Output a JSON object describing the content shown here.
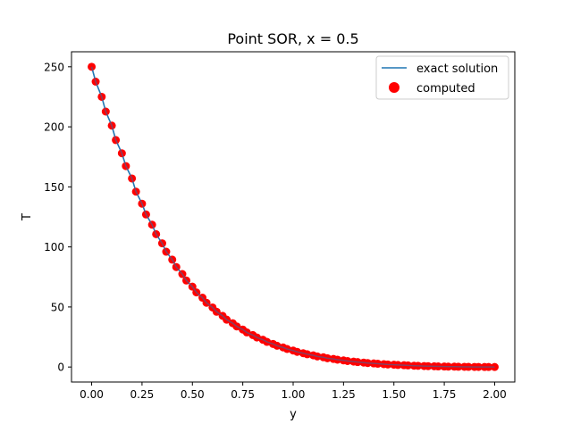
{
  "chart_data": {
    "type": "scatter",
    "title": "Point SOR, x = 0.5",
    "xlabel": "y",
    "ylabel": "T",
    "xlim": [
      -0.1,
      2.1
    ],
    "ylim": [
      -12.5,
      262.5
    ],
    "xticks": [
      0.0,
      0.25,
      0.5,
      0.75,
      1.0,
      1.25,
      1.5,
      1.75,
      2.0
    ],
    "xtick_labels": [
      "0.00",
      "0.25",
      "0.50",
      "0.75",
      "1.00",
      "1.25",
      "1.50",
      "1.75",
      "2.00"
    ],
    "yticks": [
      0,
      50,
      100,
      150,
      200,
      250
    ],
    "ytick_labels": [
      "0",
      "50",
      "100",
      "150",
      "200",
      "250"
    ],
    "grid": false,
    "legend_position": "upper right",
    "series": [
      {
        "name": "exact solution",
        "kind": "line",
        "color": "#1f77b4",
        "x": [
          0.0,
          0.02,
          0.05,
          0.07,
          0.1,
          0.12,
          0.15,
          0.17,
          0.2,
          0.22,
          0.25,
          0.27,
          0.3,
          0.32,
          0.35,
          0.37,
          0.4,
          0.42,
          0.45,
          0.47,
          0.5,
          0.52,
          0.55,
          0.57,
          0.6,
          0.62,
          0.65,
          0.67,
          0.7,
          0.72,
          0.75,
          0.77,
          0.8,
          0.82,
          0.85,
          0.87,
          0.9,
          0.92,
          0.95,
          0.97,
          1.0,
          1.02,
          1.05,
          1.07,
          1.1,
          1.12,
          1.15,
          1.17,
          1.2,
          1.22,
          1.25,
          1.27,
          1.3,
          1.32,
          1.35,
          1.37,
          1.4,
          1.42,
          1.45,
          1.47,
          1.5,
          1.52,
          1.55,
          1.57,
          1.6,
          1.62,
          1.65,
          1.67,
          1.7,
          1.72,
          1.75,
          1.77,
          1.8,
          1.82,
          1.85,
          1.87,
          1.9,
          1.92,
          1.95,
          1.97,
          2.0
        ],
        "y": [
          250.0,
          237.6,
          225.0,
          212.7,
          201.0,
          189.0,
          178.0,
          167.3,
          157.0,
          146.0,
          136.0,
          127.0,
          118.5,
          110.6,
          103.0,
          96.0,
          89.4,
          83.2,
          77.4,
          72.0,
          66.9,
          62.1,
          57.7,
          53.5,
          49.6,
          46.0,
          42.6,
          39.4,
          36.5,
          33.8,
          31.2,
          28.8,
          26.6,
          24.6,
          22.7,
          20.9,
          19.2,
          17.7,
          16.3,
          15.0,
          13.7,
          12.6,
          11.5,
          10.6,
          9.7,
          8.8,
          8.1,
          7.3,
          6.7,
          6.1,
          5.5,
          5.0,
          4.5,
          4.1,
          3.7,
          3.3,
          3.0,
          2.7,
          2.4,
          2.1,
          1.9,
          1.7,
          1.5,
          1.3,
          1.1,
          1.0,
          0.8,
          0.7,
          0.6,
          0.5,
          0.4,
          0.3,
          0.3,
          0.2,
          0.15,
          0.1,
          0.08,
          0.05,
          0.03,
          0.01,
          0.0
        ]
      },
      {
        "name": "computed",
        "kind": "scatter",
        "color": "#ff0000",
        "x": [
          0.0,
          0.02,
          0.05,
          0.07,
          0.1,
          0.12,
          0.15,
          0.17,
          0.2,
          0.22,
          0.25,
          0.27,
          0.3,
          0.32,
          0.35,
          0.37,
          0.4,
          0.42,
          0.45,
          0.47,
          0.5,
          0.52,
          0.55,
          0.57,
          0.6,
          0.62,
          0.65,
          0.67,
          0.7,
          0.72,
          0.75,
          0.77,
          0.8,
          0.82,
          0.85,
          0.87,
          0.9,
          0.92,
          0.95,
          0.97,
          1.0,
          1.02,
          1.05,
          1.07,
          1.1,
          1.12,
          1.15,
          1.17,
          1.2,
          1.22,
          1.25,
          1.27,
          1.3,
          1.32,
          1.35,
          1.37,
          1.4,
          1.42,
          1.45,
          1.47,
          1.5,
          1.52,
          1.55,
          1.57,
          1.6,
          1.62,
          1.65,
          1.67,
          1.7,
          1.72,
          1.75,
          1.77,
          1.8,
          1.82,
          1.85,
          1.87,
          1.9,
          1.92,
          1.95,
          1.97,
          2.0
        ],
        "y": [
          250.0,
          237.6,
          225.0,
          212.7,
          201.0,
          189.0,
          178.0,
          167.3,
          157.0,
          146.0,
          136.0,
          127.0,
          118.5,
          110.6,
          103.0,
          96.0,
          89.4,
          83.2,
          77.4,
          72.0,
          66.9,
          62.1,
          57.7,
          53.5,
          49.6,
          46.0,
          42.6,
          39.4,
          36.5,
          33.8,
          31.2,
          28.8,
          26.6,
          24.6,
          22.7,
          20.9,
          19.2,
          17.7,
          16.3,
          15.0,
          13.7,
          12.6,
          11.5,
          10.6,
          9.7,
          8.8,
          8.1,
          7.3,
          6.7,
          6.1,
          5.5,
          5.0,
          4.5,
          4.1,
          3.7,
          3.3,
          3.0,
          2.7,
          2.4,
          2.1,
          1.9,
          1.7,
          1.5,
          1.3,
          1.1,
          1.0,
          0.8,
          0.7,
          0.6,
          0.5,
          0.4,
          0.3,
          0.3,
          0.2,
          0.15,
          0.1,
          0.08,
          0.05,
          0.03,
          0.01,
          0.0
        ]
      }
    ]
  }
}
